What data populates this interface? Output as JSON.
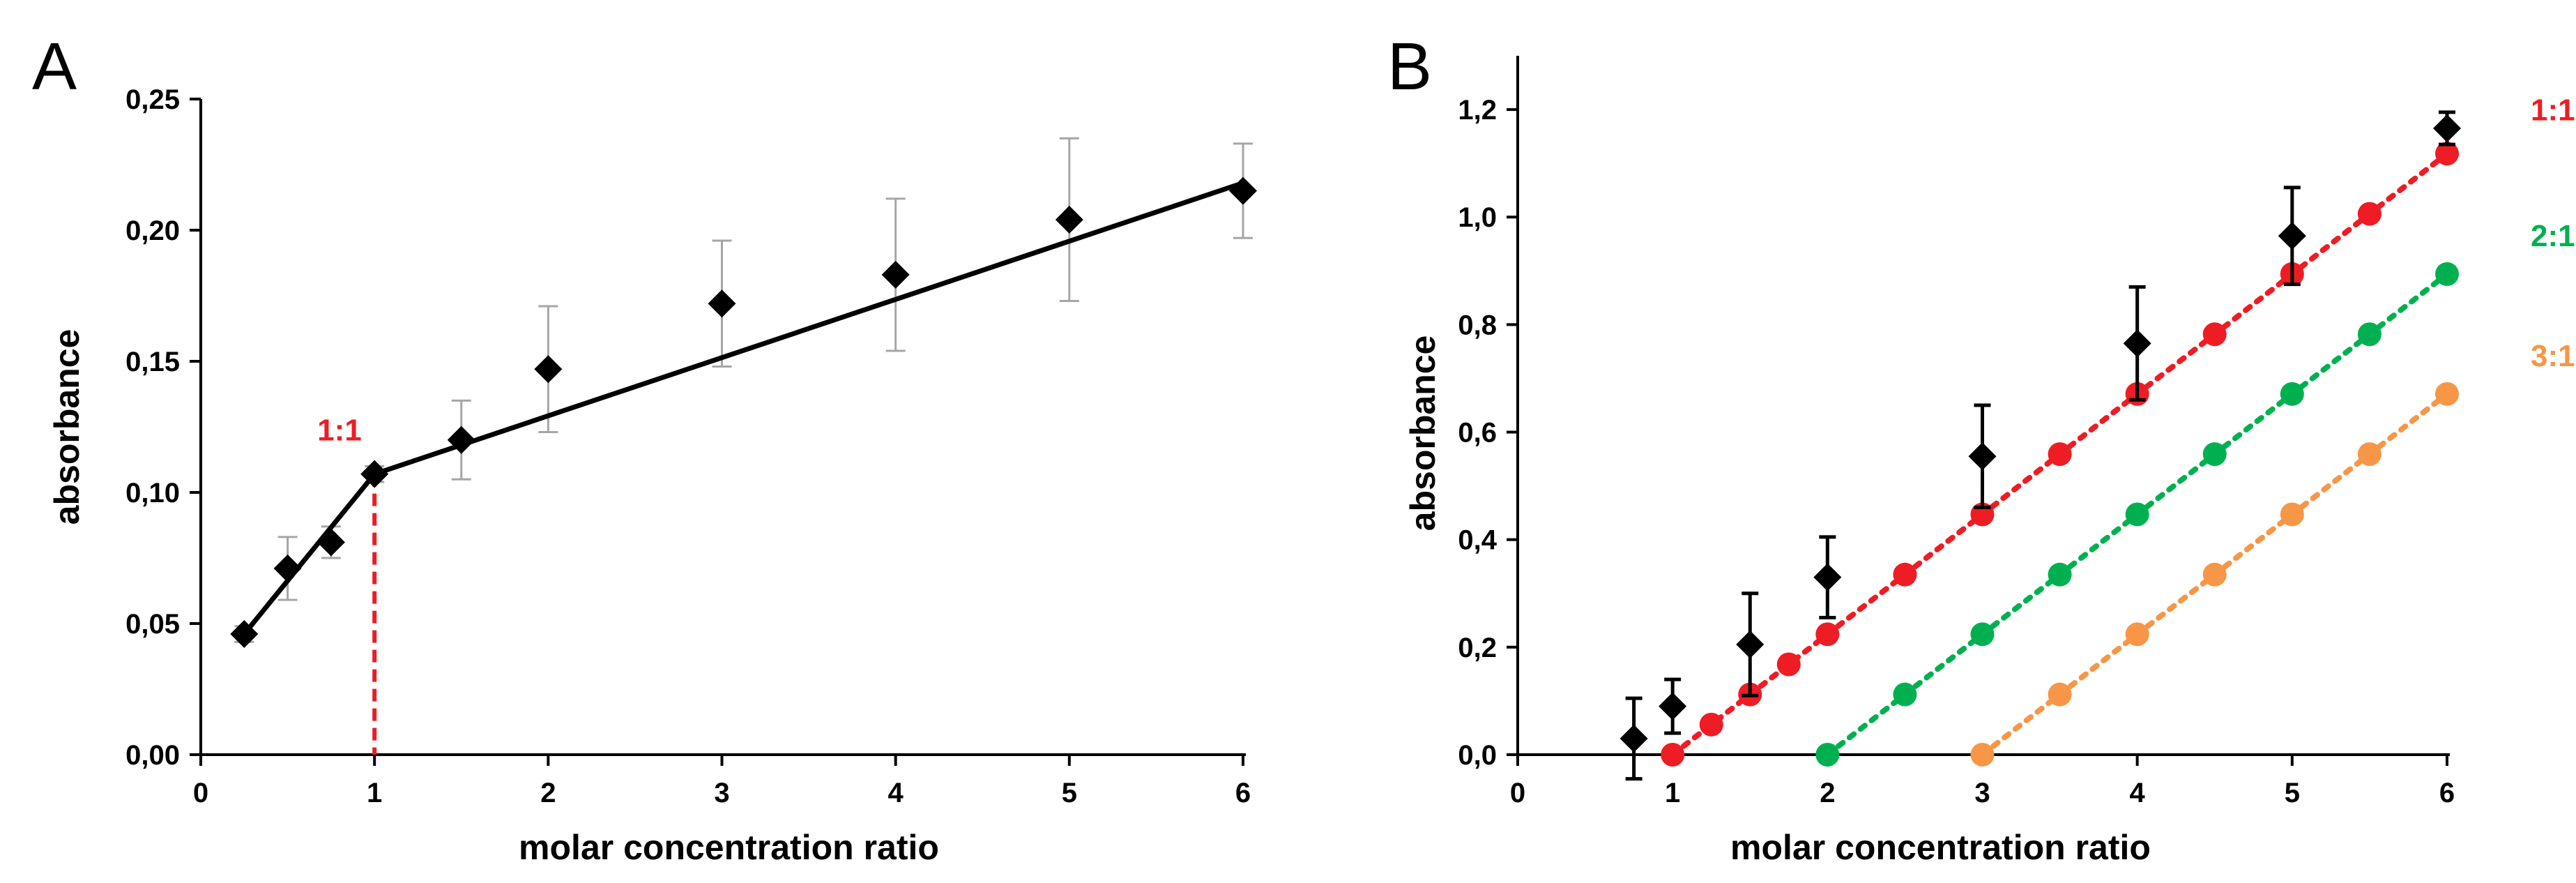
{
  "chart_data": [
    {
      "panel": "A",
      "type": "line",
      "xlabel": "molar concentration ratio",
      "ylabel": "absorbance",
      "xlim": [
        0,
        6
      ],
      "ylim": [
        0,
        0.25
      ],
      "xticks": [
        "0",
        "1",
        "2",
        "3",
        "4",
        "5",
        "6"
      ],
      "yticks": [
        "0,00",
        "0,05",
        "0,10",
        "0,15",
        "0,20",
        "0,25"
      ],
      "points": {
        "x": [
          0.25,
          0.5,
          0.75,
          1,
          1.5,
          2,
          3,
          4,
          5,
          6
        ],
        "y": [
          0.046,
          0.071,
          0.081,
          0.107,
          0.12,
          0.147,
          0.172,
          0.183,
          0.204,
          0.215
        ],
        "err": [
          0.003,
          0.012,
          0.006,
          0.003,
          0.015,
          0.024,
          0.024,
          0.029,
          0.031,
          0.018
        ],
        "color": "#000000"
      },
      "fit_lines": [
        {
          "x": [
            0.25,
            1
          ],
          "y": [
            0.046,
            0.107
          ]
        },
        {
          "x": [
            1,
            6
          ],
          "y": [
            0.107,
            0.218
          ]
        }
      ],
      "breakpoint": {
        "x": 1,
        "y": 0.107,
        "label": "1:1",
        "color": "#ee1c24"
      }
    },
    {
      "panel": "B",
      "type": "scatter",
      "xlabel": "molar concentration ratio",
      "ylabel": "absorbance",
      "xlim": [
        0,
        6
      ],
      "ylim": [
        0,
        1.3
      ],
      "xticks": [
        "0",
        "1",
        "2",
        "3",
        "4",
        "5",
        "6"
      ],
      "yticks": [
        "0,0",
        "0,2",
        "0,4",
        "0,6",
        "0,8",
        "1,0",
        "1,2"
      ],
      "measured": {
        "x": [
          0.75,
          1,
          1.5,
          2,
          3,
          4,
          5,
          6
        ],
        "y": [
          0.03,
          0.09,
          0.205,
          0.33,
          0.555,
          0.765,
          0.965,
          1.165
        ],
        "err": [
          0.075,
          0.05,
          0.095,
          0.075,
          0.095,
          0.105,
          0.09,
          0.03
        ],
        "color": "#000000"
      },
      "series": [
        {
          "name": "1:1",
          "color": "#ee1c24",
          "x": [
            1,
            1.25,
            1.5,
            1.75,
            2,
            2.5,
            3,
            3.5,
            4,
            4.5,
            5,
            5.5,
            6
          ],
          "y": [
            0,
            0.056,
            0.112,
            0.168,
            0.224,
            0.335,
            0.447,
            0.559,
            0.671,
            0.782,
            0.894,
            1.006,
            1.118
          ]
        },
        {
          "name": "2:1",
          "color": "#00b050",
          "x": [
            2,
            2.5,
            3,
            3.5,
            4,
            4.5,
            5,
            5.5,
            6
          ],
          "y": [
            0,
            0.112,
            0.224,
            0.335,
            0.447,
            0.559,
            0.671,
            0.782,
            0.894
          ]
        },
        {
          "name": "3:1",
          "color": "#f79646",
          "x": [
            3,
            3.5,
            4,
            4.5,
            5,
            5.5,
            6
          ],
          "y": [
            0,
            0.112,
            0.224,
            0.335,
            0.447,
            0.559,
            0.671
          ]
        }
      ]
    }
  ]
}
